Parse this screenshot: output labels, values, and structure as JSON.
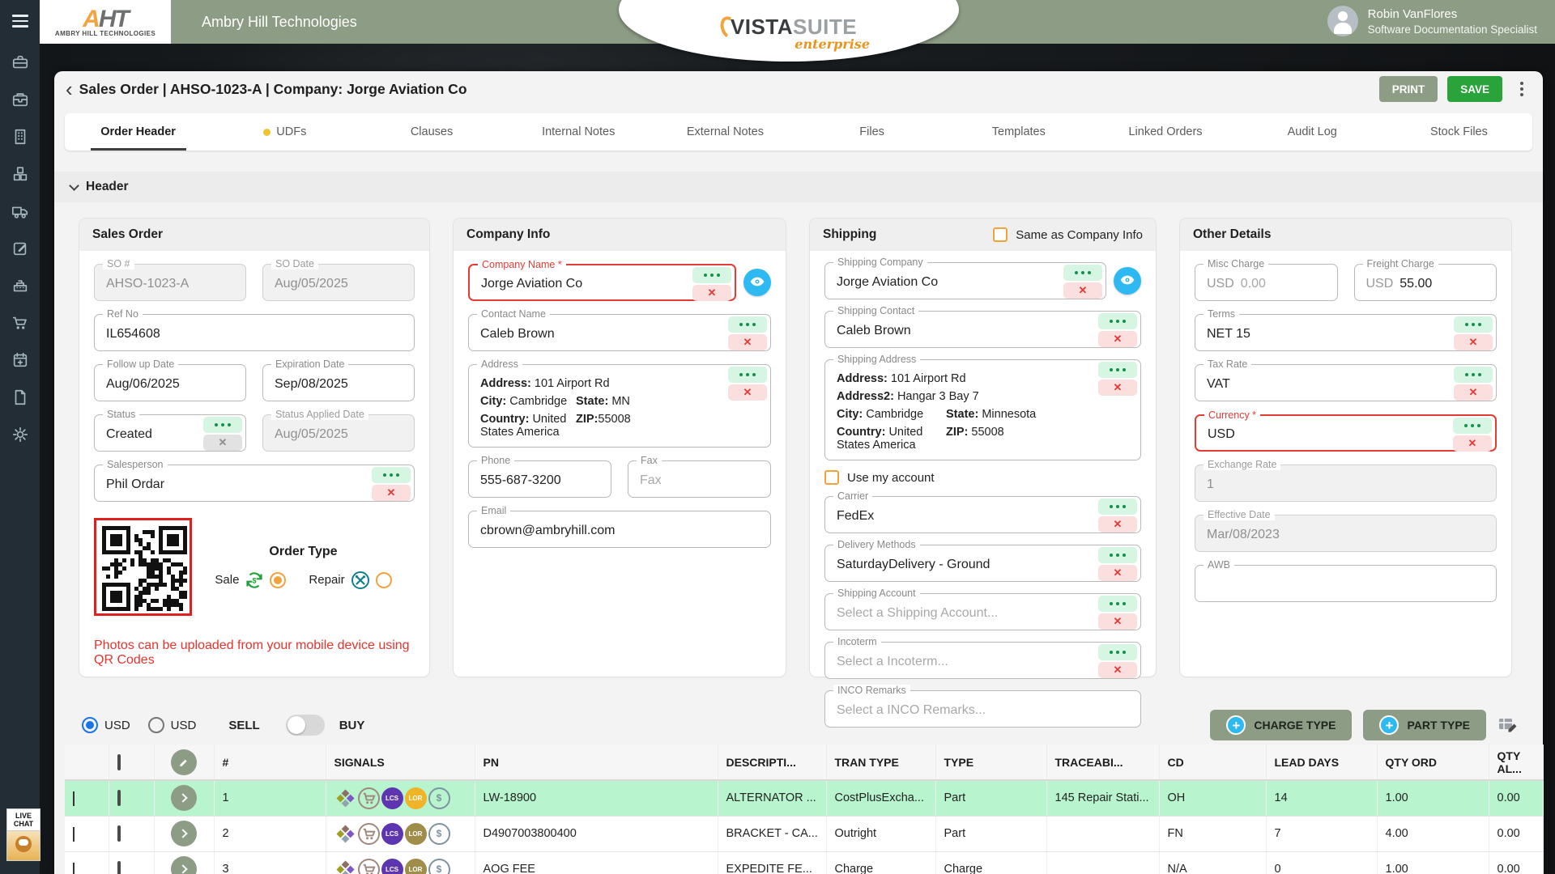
{
  "header": {
    "company_name": "Ambry Hill Technologies",
    "logo": {
      "abbr_a": "A",
      "abbr_ht": "HT",
      "caption": "AMBRY HILL TECHNOLOGIES"
    },
    "brand": {
      "vista": "VISTA",
      "suite": "SUITE",
      "tagline": "enterprise"
    },
    "user": {
      "name": "Robin VanFlores",
      "role": "Software Documentation Specialist"
    }
  },
  "titlebar": {
    "back": "‹",
    "title": "Sales Order | AHSO-1023-A | Company: Jorge Aviation Co",
    "print": "PRINT",
    "save": "SAVE"
  },
  "tabs": [
    {
      "label": "Order Header",
      "active": true,
      "dot": false
    },
    {
      "label": "UDFs",
      "active": false,
      "dot": true
    },
    {
      "label": "Clauses",
      "active": false,
      "dot": false
    },
    {
      "label": "Internal Notes",
      "active": false,
      "dot": false
    },
    {
      "label": "External Notes",
      "active": false,
      "dot": false
    },
    {
      "label": "Files",
      "active": false,
      "dot": false
    },
    {
      "label": "Templates",
      "active": false,
      "dot": false
    },
    {
      "label": "Linked Orders",
      "active": false,
      "dot": false
    },
    {
      "label": "Audit Log",
      "active": false,
      "dot": false
    },
    {
      "label": "Stock Files",
      "active": false,
      "dot": false
    }
  ],
  "section": {
    "header_label": "Header"
  },
  "sales_order": {
    "title": "Sales Order",
    "so_number": {
      "label": "SO #",
      "value": "AHSO-1023-A"
    },
    "so_date": {
      "label": "SO Date",
      "value": "Aug/05/2025"
    },
    "ref_no": {
      "label": "Ref No",
      "value": "IL654608"
    },
    "follow_up": {
      "label": "Follow up Date",
      "value": "Aug/06/2025"
    },
    "expiration": {
      "label": "Expiration Date",
      "value": "Sep/08/2025"
    },
    "status": {
      "label": "Status",
      "value": "Created"
    },
    "status_applied": {
      "label": "Status Applied Date",
      "value": "Aug/05/2025"
    },
    "salesperson": {
      "label": "Salesperson",
      "value": "Phil Ordar"
    },
    "order_type": {
      "heading": "Order Type",
      "sale": "Sale",
      "repair": "Repair"
    },
    "qr_caption": "Photos can be uploaded from your mobile device using QR Codes"
  },
  "company_info": {
    "title": "Company Info",
    "company_name": {
      "label": "Company Name *",
      "value": "Jorge Aviation Co"
    },
    "contact_name": {
      "label": "Contact Name",
      "value": "Caleb Brown"
    },
    "address": {
      "label": "Address",
      "address_key": "Address:",
      "address_val": "101 Airport Rd",
      "city_key": "City:",
      "city_val": "Cambridge",
      "state_key": "State:",
      "state_val": "MN",
      "country_key": "Country:",
      "country_val": "United States America",
      "zip_key": "ZIP:",
      "zip_val": "55008"
    },
    "phone": {
      "label": "Phone",
      "value": "555-687-3200"
    },
    "fax": {
      "label": "Fax",
      "placeholder": "Fax"
    },
    "email": {
      "label": "Email",
      "value": "cbrown@ambryhill.com"
    }
  },
  "shipping": {
    "title": "Shipping",
    "same_as": "Same as Company Info",
    "company": {
      "label": "Shipping Company",
      "value": "Jorge Aviation Co"
    },
    "contact": {
      "label": "Shipping Contact",
      "value": "Caleb Brown"
    },
    "address": {
      "label": "Shipping Address",
      "address_key": "Address:",
      "address_val": "101 Airport Rd",
      "address2_key": "Address2:",
      "address2_val": "Hangar 3 Bay 7",
      "city_key": "City:",
      "city_val": "Cambridge",
      "state_key": "State:",
      "state_val": "Minnesota",
      "country_key": "Country:",
      "country_val": "United States America",
      "zip_key": "ZIP:",
      "zip_val": "55008"
    },
    "use_my_account": "Use my account",
    "carrier": {
      "label": "Carrier",
      "value": "FedEx"
    },
    "delivery": {
      "label": "Delivery Methods",
      "value": "SaturdayDelivery - Ground"
    },
    "shipping_account": {
      "label": "Shipping Account",
      "placeholder": "Select a Shipping Account..."
    },
    "incoterm": {
      "label": "Incoterm",
      "placeholder": "Select a Incoterm..."
    },
    "inco_remarks": {
      "label": "INCO Remarks",
      "placeholder": "Select a INCO Remarks..."
    }
  },
  "other_details": {
    "title": "Other Details",
    "misc_charge": {
      "label": "Misc Charge",
      "prefix": "USD",
      "value": "0.00"
    },
    "freight_charge": {
      "label": "Freight Charge",
      "prefix": "USD",
      "value": "55.00"
    },
    "terms": {
      "label": "Terms",
      "value": "NET 15"
    },
    "tax_rate": {
      "label": "Tax Rate",
      "value": "VAT"
    },
    "currency": {
      "label": "Currency *",
      "value": "USD"
    },
    "exchange_rate": {
      "label": "Exchange Rate",
      "value": "1"
    },
    "effective_date": {
      "label": "Effective Date",
      "value": "Mar/08/2023"
    },
    "awb": {
      "label": "AWB",
      "value": ""
    }
  },
  "toolbar": {
    "currency_a": "USD",
    "currency_b": "USD",
    "sell": "SELL",
    "buy": "BUY",
    "charge_type": "CHARGE TYPE",
    "part_type": "PART TYPE"
  },
  "table": {
    "columns": [
      "#",
      "SIGNALS",
      "PN",
      "DESCRIPTI...",
      "TRAN TYPE",
      "TYPE",
      "TRACEABI...",
      "CD",
      "LEAD DAYS",
      "QTY ORD",
      "QTY AL..."
    ],
    "rows": [
      {
        "num": "1",
        "pn": "LW-18900",
        "desc": "ALTERNATOR ...",
        "tran": "CostPlusExcha...",
        "type": "Part",
        "trace": "145 Repair Stati...",
        "cd": "OH",
        "lead": "14",
        "qty_ord": "1.00",
        "qty_al": "0.00",
        "highlighted": true,
        "signals": [
          "diamond",
          "cart",
          "lcs",
          "lor_yellow",
          "moneybag"
        ]
      },
      {
        "num": "2",
        "pn": "D4907003800400",
        "desc": "BRACKET - CA...",
        "tran": "Outright",
        "type": "Part",
        "trace": "",
        "cd": "FN",
        "lead": "7",
        "qty_ord": "4.00",
        "qty_al": "0.00",
        "highlighted": false,
        "signals": [
          "diamond",
          "cart",
          "lcs",
          "lor_olive",
          "moneybag"
        ]
      },
      {
        "num": "3",
        "pn": "AOG FEE",
        "desc": "EXPEDITE FE...",
        "tran": "Charge",
        "type": "Charge",
        "trace": "",
        "cd": "N/A",
        "lead": "0",
        "qty_ord": "1.00",
        "qty_al": "0.00",
        "highlighted": false,
        "signals": [
          "diamond",
          "cart",
          "lcs",
          "lor_olive",
          "moneybag"
        ]
      }
    ],
    "signal_badges": {
      "lcs": "LCS",
      "lor": "LOR",
      "money": "$"
    }
  },
  "live_chat": {
    "line1": "LIVE",
    "line2": "CHAT"
  },
  "sidebar_icons": [
    "briefcase",
    "briefcase-alt",
    "building",
    "cubes",
    "truck",
    "edit",
    "cash-register",
    "shopping-cart",
    "calendar-plus",
    "document",
    "gear"
  ],
  "colors": {
    "sage": "#8d9c85",
    "save_green": "#2aa33b",
    "chip_mint": "#d7f5e3",
    "chip_green": "#12914b",
    "chip_pink": "#fbdede",
    "error_red": "#e43c35",
    "eye_blue": "#2fb9f2",
    "orange": "#f2a33c",
    "row_highlight": "#b8f5cf",
    "sidebar_bg": "#222d36",
    "lcs_purple": "#5e35b1",
    "lor_yellow": "#f0b429"
  }
}
